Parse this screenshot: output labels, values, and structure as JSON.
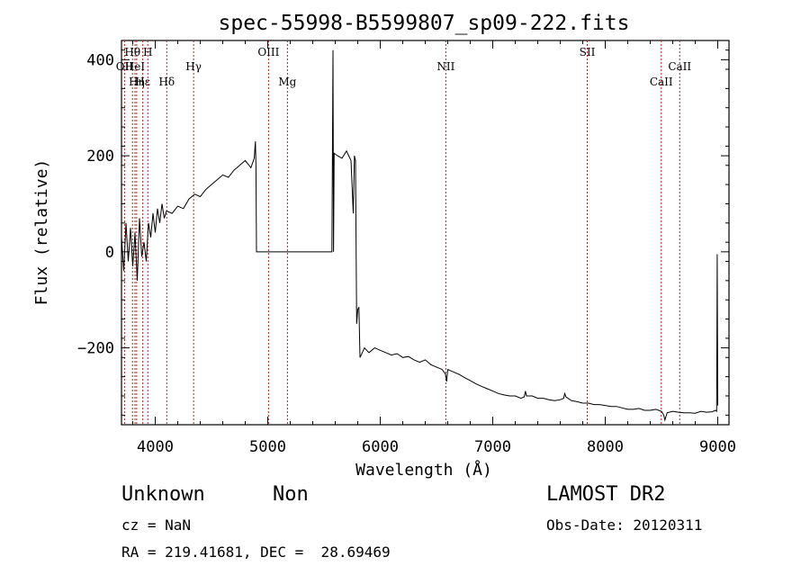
{
  "chart_data": {
    "type": "line",
    "title": "spec-55998-B5599807_sp09-222.fits",
    "xlabel": "Wavelength (Å)",
    "ylabel": "Flux (relative)",
    "xlim": [
      3700,
      9100
    ],
    "ylim": [
      -360,
      440
    ],
    "x_ticks": [
      4000,
      5000,
      6000,
      7000,
      8000,
      9000
    ],
    "y_ticks": [
      -200,
      0,
      200,
      400
    ],
    "grid": false,
    "series": [
      {
        "color": "#000000",
        "x": [
          3700,
          3720,
          3740,
          3760,
          3780,
          3800,
          3820,
          3840,
          3860,
          3880,
          3900,
          3920,
          3940,
          3960,
          3980,
          4000,
          4020,
          4040,
          4060,
          4080,
          4100,
          4150,
          4200,
          4250,
          4300,
          4350,
          4400,
          4450,
          4500,
          4550,
          4600,
          4650,
          4700,
          4750,
          4800,
          4850,
          4880,
          4890,
          4895,
          4900,
          5000,
          5100,
          5200,
          5300,
          5400,
          5500,
          5570,
          5580,
          5585,
          5590,
          5620,
          5660,
          5700,
          5740,
          5760,
          5770,
          5780,
          5790,
          5800,
          5810,
          5820,
          5840,
          5860,
          5880,
          5900,
          5950,
          6000,
          6050,
          6100,
          6150,
          6200,
          6250,
          6300,
          6350,
          6400,
          6450,
          6500,
          6550,
          6580,
          6590,
          6600,
          6650,
          6700,
          6750,
          6800,
          6850,
          6900,
          6950,
          7000,
          7050,
          7100,
          7150,
          7200,
          7250,
          7280,
          7290,
          7300,
          7350,
          7400,
          7450,
          7500,
          7550,
          7600,
          7630,
          7640,
          7650,
          7700,
          7750,
          7800,
          7850,
          7900,
          7950,
          8000,
          8050,
          8100,
          8150,
          8200,
          8250,
          8300,
          8350,
          8400,
          8450,
          8500,
          8520,
          8530,
          8550,
          8600,
          8650,
          8700,
          8750,
          8800,
          8850,
          8900,
          8950,
          8980,
          8990,
          8995,
          9000
        ],
        "y": [
          30,
          -40,
          60,
          -20,
          50,
          -30,
          40,
          -60,
          70,
          -10,
          20,
          -20,
          60,
          30,
          80,
          40,
          90,
          60,
          100,
          70,
          85,
          80,
          95,
          90,
          110,
          120,
          115,
          130,
          140,
          150,
          160,
          155,
          170,
          180,
          190,
          175,
          195,
          230,
          180,
          0,
          0,
          0,
          0,
          0,
          0,
          0,
          0,
          420,
          0,
          205,
          200,
          195,
          210,
          190,
          80,
          200,
          190,
          -150,
          -120,
          -115,
          -220,
          -210,
          -200,
          -205,
          -210,
          -200,
          -205,
          -210,
          -215,
          -212,
          -220,
          -218,
          -225,
          -230,
          -225,
          -235,
          -240,
          -245,
          -255,
          -270,
          -245,
          -250,
          -255,
          -262,
          -268,
          -275,
          -280,
          -285,
          -290,
          -295,
          -298,
          -300,
          -300,
          -305,
          -302,
          -290,
          -300,
          -300,
          -305,
          -305,
          -308,
          -310,
          -308,
          -305,
          -295,
          -302,
          -310,
          -312,
          -315,
          -315,
          -318,
          -318,
          -320,
          -322,
          -322,
          -325,
          -328,
          -328,
          -326,
          -330,
          -330,
          -328,
          -332,
          -340,
          -350,
          -335,
          -332,
          -334,
          -335,
          -335,
          -336,
          -332,
          -334,
          -333,
          -330,
          -332,
          -5,
          -320
        ]
      }
    ],
    "lines": [
      {
        "label": "Hθ",
        "x": 3798,
        "row": 1
      },
      {
        "label": "OII",
        "x": 3727,
        "row": 2
      },
      {
        "label": "HeI",
        "x": 3820,
        "row": 2
      },
      {
        "label": "Hη",
        "x": 3835,
        "row": 3
      },
      {
        "label": "Hε",
        "x": 3889,
        "row": 3
      },
      {
        "label": "H",
        "x": 3934,
        "row": 1
      },
      {
        "label": "Hδ",
        "x": 4102,
        "row": 3
      },
      {
        "label": "Hγ",
        "x": 4341,
        "row": 2
      },
      {
        "label": "OIII",
        "x": 5007,
        "row": 1
      },
      {
        "label": "Mg",
        "x": 5175,
        "row": 3
      },
      {
        "label": "NII",
        "x": 6583,
        "row": 2
      },
      {
        "label": "SII",
        "x": 7840,
        "row": 1
      },
      {
        "label": "CaII",
        "x": 8498,
        "row": 3
      },
      {
        "label": "CaII",
        "x": 8662,
        "row": 2
      }
    ]
  },
  "footer": {
    "object_class": "Unknown",
    "subclass": "Non",
    "survey": "LAMOST DR2",
    "cz": "cz = NaN",
    "obs_date": "Obs-Date: 20120311",
    "coords": "RA = 219.41681, DEC =  28.69469"
  },
  "colors": {
    "spectrum": "#000000",
    "line_marker": "#b22222",
    "axes": "#000000"
  }
}
